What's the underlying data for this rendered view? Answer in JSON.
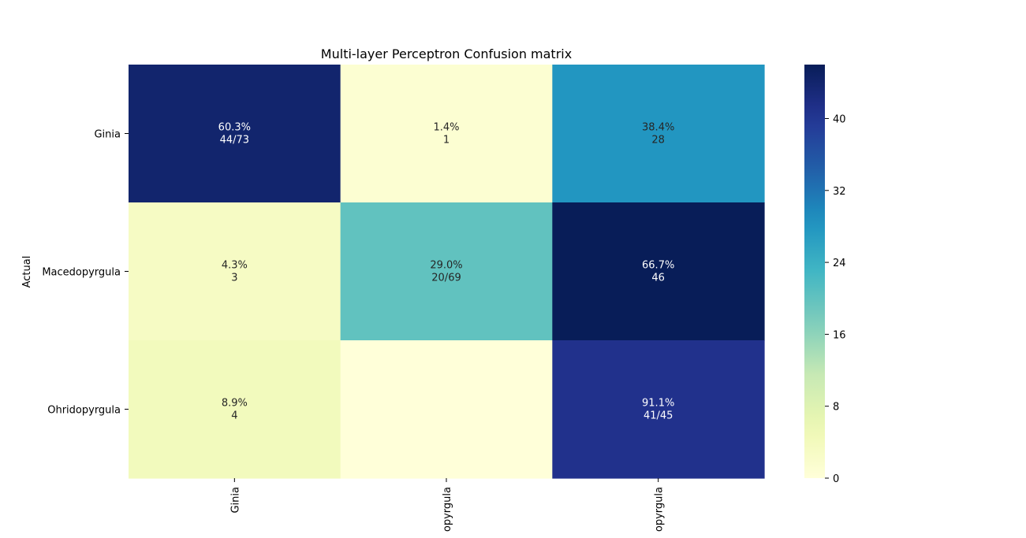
{
  "chart_data": {
    "type": "heatmap",
    "title": "Multi-layer Perceptron Confusion matrix",
    "ylabel": "Actual",
    "xlabel": "",
    "row_labels": [
      "Ginia",
      "Macedopyrgula",
      "Ohridopyrgula"
    ],
    "col_labels": [
      "Ginia",
      "Macedopyrgula",
      "Ohridopyrgula"
    ],
    "col_labels_visible": [
      "Ginia",
      "opyrgula",
      "opyrgula"
    ],
    "values": [
      [
        44,
        1,
        28
      ],
      [
        3,
        20,
        46
      ],
      [
        4,
        0,
        41
      ]
    ],
    "annotations": [
      [
        "60.3%\n44/73",
        "1.4%\n1",
        "38.4%\n28"
      ],
      [
        "4.3%\n3",
        "29.0%\n20/69",
        "66.7%\n46"
      ],
      [
        "8.9%\n4",
        "",
        "91.1%\n41/45"
      ]
    ],
    "colormap": "YlGnBu",
    "vmin": 0,
    "vmax": 46,
    "colorbar_ticks": [
      0,
      8,
      16,
      24,
      32,
      40
    ]
  }
}
